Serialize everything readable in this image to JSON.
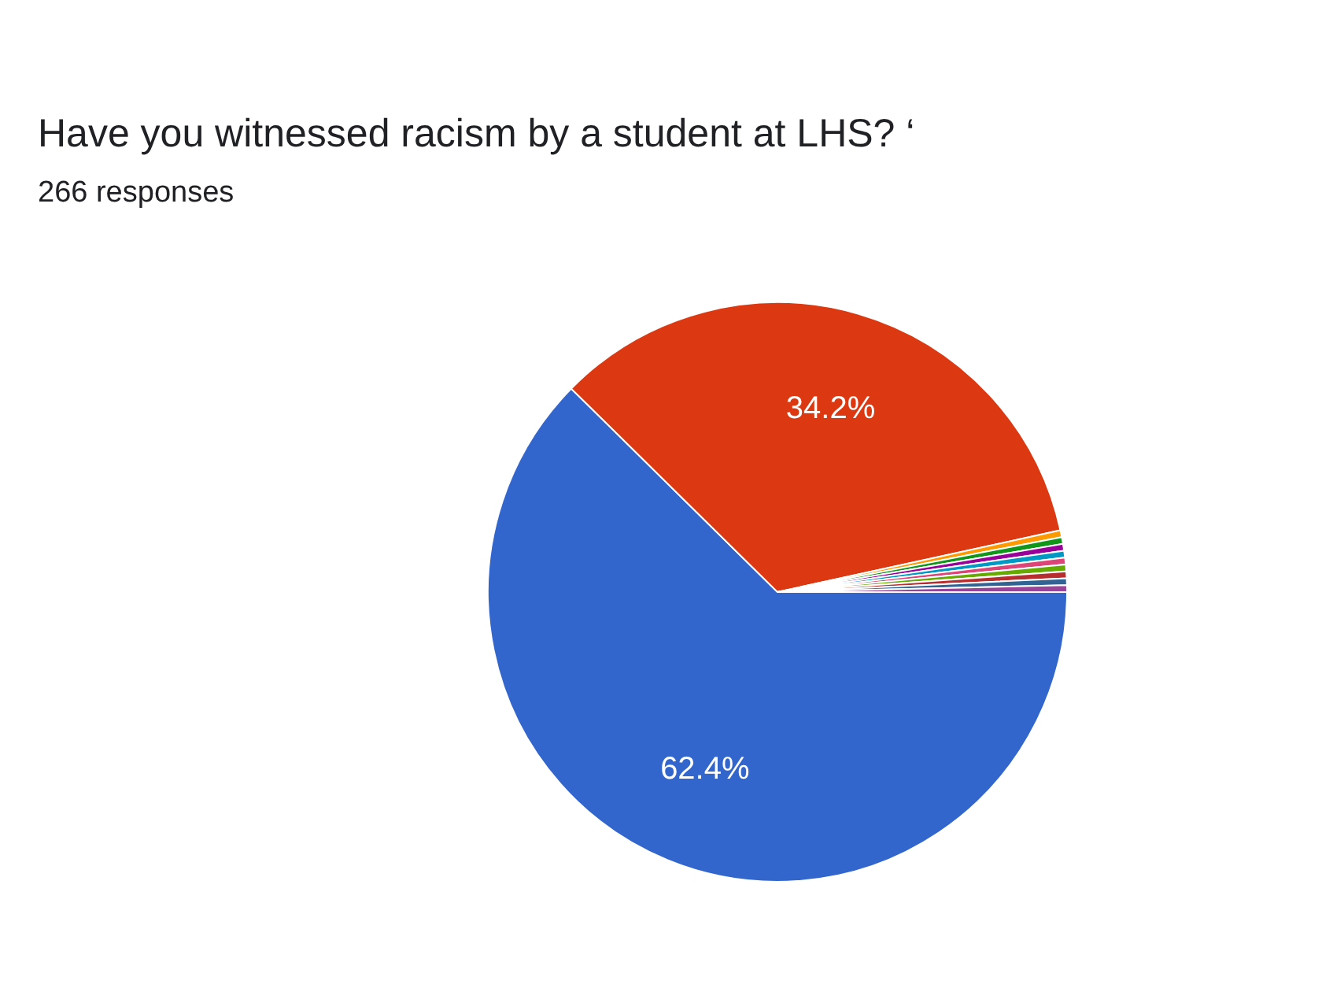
{
  "chart_data": {
    "type": "pie",
    "title": "Have you witnessed racism by a student at LHS? ‘",
    "subtitle": "266 responses",
    "categories": [
      null,
      null,
      null,
      null,
      null,
      null,
      null,
      null,
      null,
      null,
      null
    ],
    "values": [
      62.4,
      34.2,
      0.38,
      0.38,
      0.38,
      0.38,
      0.38,
      0.38,
      0.38,
      0.38,
      0.38
    ],
    "colors": [
      "#3366cc",
      "#dc3912",
      "#ff9900",
      "#109618",
      "#990099",
      "#0099c6",
      "#dd4477",
      "#66aa00",
      "#b82e2e",
      "#316395",
      "#994499"
    ],
    "value_labels": [
      "62.4%",
      "34.2%",
      null,
      null,
      null,
      null,
      null,
      null,
      null,
      null,
      null
    ]
  }
}
